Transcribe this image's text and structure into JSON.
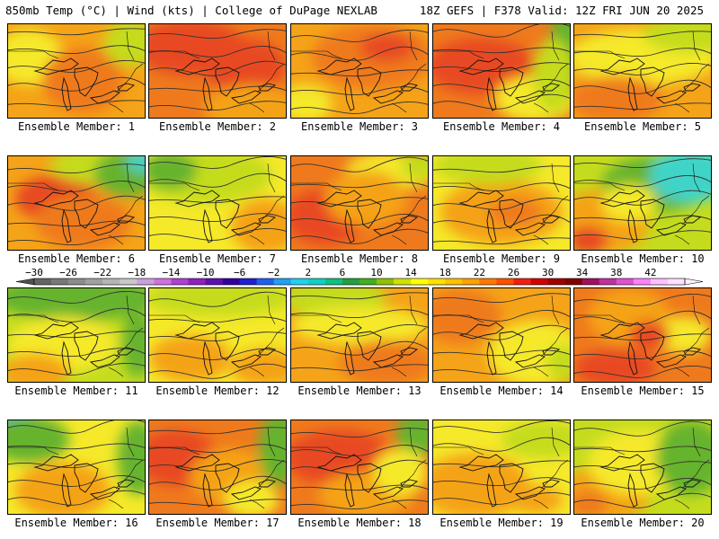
{
  "header": {
    "left": "850mb Temp (°C) | Wind (kts) | College of DuPage NEXLAB",
    "right": "18Z GEFS | F378 Valid: 12Z FRI JUN 20 2025"
  },
  "colorbar": {
    "colors": [
      "#646464",
      "#787878",
      "#8c8c8c",
      "#a0a0a0",
      "#b4b4b4",
      "#c8c8c8",
      "#c9a0dc",
      "#d070e0",
      "#b040d0",
      "#9020c0",
      "#6010b0",
      "#3000a0",
      "#2020d0",
      "#2060f0",
      "#20a0f0",
      "#20d0f0",
      "#10d0c0",
      "#10c080",
      "#20a040",
      "#40b020",
      "#90c000",
      "#d0e000",
      "#ffff00",
      "#ffe000",
      "#ffc000",
      "#ffa000",
      "#ff7800",
      "#ff5000",
      "#f02010",
      "#d00000",
      "#a00000",
      "#800000",
      "#a01060",
      "#c030a0",
      "#e050d0",
      "#ff80ff",
      "#ffc0ff",
      "#ffe0ff"
    ],
    "tick_labels": [
      "−30",
      "−26",
      "−22",
      "−18",
      "−14",
      "−10",
      "−6",
      "−2",
      "2",
      "6",
      "10",
      "14",
      "18",
      "22",
      "26",
      "30",
      "34",
      "38",
      "42"
    ]
  },
  "palette": {
    "green": "#66b32e",
    "yellowgreen": "#c5dc1e",
    "yellow": "#f5e92a",
    "orange": "#f5a318",
    "darkorange": "#ef7a1d",
    "red": "#e84a22",
    "cyan": "#3fd4c8"
  },
  "panels": [
    {
      "label": "Ensemble Member: 1",
      "base": "orange",
      "blobs": [
        [
          "yellow",
          0.15,
          0.35,
          0.25,
          0.3
        ],
        [
          "darkorange",
          0.55,
          0.6,
          0.3,
          0.35
        ],
        [
          "yellowgreen",
          0.9,
          0.2,
          0.2,
          0.25
        ]
      ]
    },
    {
      "label": "Ensemble Member: 2",
      "base": "darkorange",
      "blobs": [
        [
          "red",
          0.3,
          0.25,
          0.4,
          0.3
        ],
        [
          "red",
          0.7,
          0.45,
          0.3,
          0.3
        ],
        [
          "orange",
          0.75,
          0.9,
          0.35,
          0.25
        ]
      ]
    },
    {
      "label": "Ensemble Member: 3",
      "base": "orange",
      "blobs": [
        [
          "darkorange",
          0.6,
          0.35,
          0.45,
          0.35
        ],
        [
          "red",
          0.7,
          0.25,
          0.2,
          0.15
        ],
        [
          "yellow",
          0.1,
          0.85,
          0.2,
          0.2
        ]
      ]
    },
    {
      "label": "Ensemble Member: 4",
      "base": "darkorange",
      "blobs": [
        [
          "red",
          0.35,
          0.45,
          0.4,
          0.3
        ],
        [
          "yellow",
          0.75,
          0.8,
          0.3,
          0.25
        ],
        [
          "green",
          0.97,
          0.3,
          0.12,
          0.5
        ],
        [
          "yellowgreen",
          0.88,
          0.55,
          0.15,
          0.4
        ]
      ]
    },
    {
      "label": "Ensemble Member: 5",
      "base": "orange",
      "blobs": [
        [
          "yellow",
          0.5,
          0.35,
          0.55,
          0.3
        ],
        [
          "yellowgreen",
          0.85,
          0.1,
          0.35,
          0.2
        ],
        [
          "darkorange",
          0.3,
          0.8,
          0.35,
          0.25
        ]
      ]
    },
    {
      "label": "Ensemble Member: 6",
      "base": "orange",
      "blobs": [
        [
          "red",
          0.35,
          0.45,
          0.3,
          0.25
        ],
        [
          "darkorange",
          0.55,
          0.7,
          0.35,
          0.3
        ],
        [
          "yellowgreen",
          0.7,
          0.1,
          0.4,
          0.2
        ],
        [
          "green",
          0.88,
          0.18,
          0.25,
          0.25
        ],
        [
          "cyan",
          0.97,
          0.05,
          0.1,
          0.12
        ]
      ]
    },
    {
      "label": "Ensemble Member: 7",
      "base": "yellow",
      "blobs": [
        [
          "yellowgreen",
          0.4,
          0.2,
          0.5,
          0.3
        ],
        [
          "orange",
          0.85,
          0.75,
          0.25,
          0.3
        ],
        [
          "green",
          0.15,
          0.15,
          0.2,
          0.2
        ]
      ]
    },
    {
      "label": "Ensemble Member: 8",
      "base": "darkorange",
      "blobs": [
        [
          "red",
          0.25,
          0.65,
          0.3,
          0.3
        ],
        [
          "yellow",
          0.75,
          0.15,
          0.35,
          0.2
        ],
        [
          "yellowgreen",
          0.95,
          0.1,
          0.15,
          0.15
        ],
        [
          "orange",
          0.55,
          0.45,
          0.3,
          0.3
        ]
      ]
    },
    {
      "label": "Ensemble Member: 9",
      "base": "yellow",
      "blobs": [
        [
          "orange",
          0.5,
          0.6,
          0.45,
          0.35
        ],
        [
          "yellowgreen",
          0.4,
          0.1,
          0.4,
          0.2
        ],
        [
          "darkorange",
          0.6,
          0.6,
          0.2,
          0.15
        ]
      ]
    },
    {
      "label": "Ensemble Member: 10",
      "base": "yellowgreen",
      "blobs": [
        [
          "orange",
          0.2,
          0.7,
          0.35,
          0.35
        ],
        [
          "red",
          0.1,
          0.9,
          0.15,
          0.15
        ],
        [
          "green",
          0.6,
          0.3,
          0.4,
          0.3
        ],
        [
          "cyan",
          0.85,
          0.2,
          0.3,
          0.3
        ],
        [
          "yellow",
          0.4,
          0.5,
          0.2,
          0.2
        ]
      ]
    },
    {
      "label": "Ensemble Member: 11",
      "base": "yellowgreen",
      "blobs": [
        [
          "green",
          0.5,
          0.1,
          0.6,
          0.25
        ],
        [
          "yellow",
          0.4,
          0.6,
          0.4,
          0.3
        ],
        [
          "orange",
          0.2,
          0.9,
          0.25,
          0.2
        ],
        [
          "green",
          0.95,
          0.6,
          0.12,
          0.35
        ]
      ]
    },
    {
      "label": "Ensemble Member: 12",
      "base": "yellow",
      "blobs": [
        [
          "yellowgreen",
          0.5,
          0.1,
          0.55,
          0.2
        ],
        [
          "orange",
          0.3,
          0.75,
          0.3,
          0.25
        ],
        [
          "orange",
          0.85,
          0.85,
          0.25,
          0.2
        ]
      ]
    },
    {
      "label": "Ensemble Member: 13",
      "base": "orange",
      "blobs": [
        [
          "yellowgreen",
          0.3,
          0.1,
          0.4,
          0.2
        ],
        [
          "yellow",
          0.5,
          0.4,
          0.5,
          0.2
        ],
        [
          "darkorange",
          0.7,
          0.8,
          0.35,
          0.25
        ]
      ]
    },
    {
      "label": "Ensemble Member: 14",
      "base": "orange",
      "blobs": [
        [
          "yellow",
          0.75,
          0.7,
          0.35,
          0.35
        ],
        [
          "yellowgreen",
          0.95,
          0.8,
          0.12,
          0.2
        ],
        [
          "darkorange",
          0.2,
          0.3,
          0.3,
          0.3
        ]
      ]
    },
    {
      "label": "Ensemble Member: 15",
      "base": "darkorange",
      "blobs": [
        [
          "red",
          0.3,
          0.85,
          0.3,
          0.2
        ],
        [
          "orange",
          0.4,
          0.3,
          0.3,
          0.3
        ],
        [
          "yellow",
          0.8,
          0.5,
          0.2,
          0.2
        ],
        [
          "red",
          0.55,
          0.5,
          0.15,
          0.15
        ]
      ]
    },
    {
      "label": "Ensemble Member: 16",
      "base": "yellow",
      "blobs": [
        [
          "cyan",
          0.05,
          0.05,
          0.2,
          0.15
        ],
        [
          "green",
          0.15,
          0.2,
          0.3,
          0.25
        ],
        [
          "orange",
          0.4,
          0.75,
          0.35,
          0.3
        ],
        [
          "green",
          0.95,
          0.4,
          0.15,
          0.4
        ]
      ]
    },
    {
      "label": "Ensemble Member: 17",
      "base": "darkorange",
      "blobs": [
        [
          "red",
          0.2,
          0.4,
          0.3,
          0.3
        ],
        [
          "orange",
          0.6,
          0.6,
          0.3,
          0.3
        ],
        [
          "green",
          0.95,
          0.3,
          0.15,
          0.4
        ],
        [
          "yellow",
          0.75,
          0.85,
          0.2,
          0.2
        ]
      ]
    },
    {
      "label": "Ensemble Member: 18",
      "base": "darkorange",
      "blobs": [
        [
          "red",
          0.35,
          0.4,
          0.4,
          0.3
        ],
        [
          "orange",
          0.55,
          0.8,
          0.35,
          0.25
        ],
        [
          "green",
          0.92,
          0.15,
          0.15,
          0.25
        ],
        [
          "yellow",
          0.8,
          0.55,
          0.2,
          0.25
        ]
      ]
    },
    {
      "label": "Ensemble Member: 19",
      "base": "yellow",
      "blobs": [
        [
          "orange",
          0.3,
          0.7,
          0.4,
          0.35
        ],
        [
          "yellowgreen",
          0.8,
          0.2,
          0.3,
          0.2
        ],
        [
          "orange",
          0.75,
          0.85,
          0.2,
          0.15
        ]
      ]
    },
    {
      "label": "Ensemble Member: 20",
      "base": "yellowgreen",
      "blobs": [
        [
          "orange",
          0.2,
          0.8,
          0.35,
          0.3
        ],
        [
          "yellow",
          0.45,
          0.45,
          0.35,
          0.35
        ],
        [
          "green",
          0.85,
          0.4,
          0.25,
          0.4
        ],
        [
          "darkorange",
          0.1,
          0.9,
          0.15,
          0.15
        ]
      ]
    }
  ]
}
